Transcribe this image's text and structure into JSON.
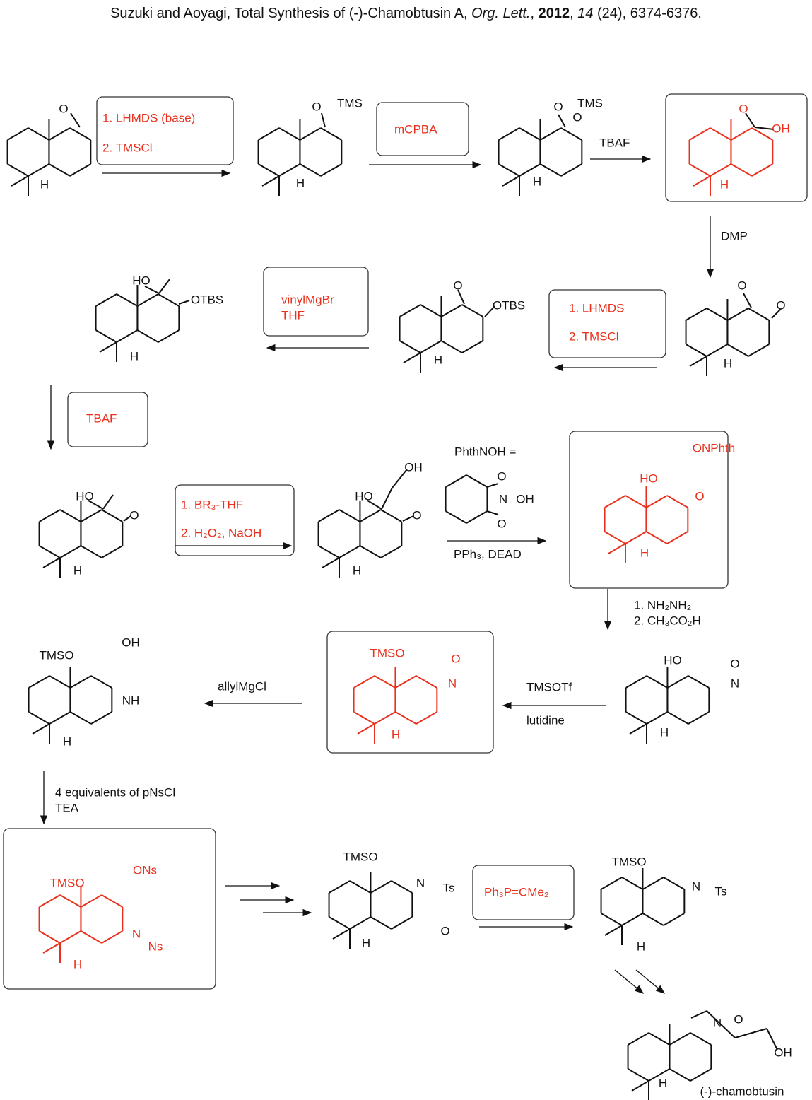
{
  "header": {
    "title_parts": [
      "Suzuki and Aoyagi, Total Synthesis of (-)-Chamobtusin A, ",
      "Org. Lett.",
      ", ",
      "2012",
      ", ",
      "14",
      " (24), 6374-6376."
    ]
  },
  "molecules": [
    {
      "labels": [
        "O",
        "H"
      ]
    },
    {
      "labels": [
        "O",
        "TMS",
        "H"
      ]
    },
    {
      "labels": [
        "O",
        "TMS",
        "O",
        "H"
      ]
    },
    {
      "labels": [
        "O",
        "OH",
        "H"
      ]
    },
    {
      "labels": [
        "O",
        "O",
        "H"
      ]
    },
    {
      "labels": [
        "O",
        "OTBS",
        "H"
      ]
    },
    {
      "labels": [
        "HO",
        "OTBS",
        "H"
      ]
    },
    {
      "labels": [
        "HO",
        "O",
        "H"
      ]
    },
    {
      "labels": [
        "OH",
        "HO",
        "O",
        "H"
      ]
    },
    {
      "labels": [
        "ONPhth",
        "HO",
        "O",
        "H"
      ]
    },
    {
      "labels": [
        "HO",
        "O",
        "N",
        "H"
      ]
    },
    {
      "labels": [
        "TMSO",
        "O",
        "N",
        "H"
      ]
    },
    {
      "labels": [
        "TMSO",
        "OH",
        "NH",
        "H"
      ]
    },
    {
      "labels": [
        "ONs",
        "TMSO",
        "N",
        "Ns",
        "H"
      ]
    },
    {
      "labels": [
        "TMSO",
        "N",
        "Ts",
        "O",
        "H"
      ]
    },
    {
      "labels": [
        "TMSO",
        "N",
        "Ts",
        "H"
      ]
    },
    {
      "labels": [
        "N",
        "O",
        "OH",
        "H",
        "(-)-chamobtusin"
      ]
    }
  ],
  "reagents": [
    [
      "1.  LHMDS (base)",
      "2.  TMSCl"
    ],
    [
      "mCPBA"
    ],
    [
      "TBAF"
    ],
    [
      "DMP"
    ],
    [
      "1.  LHMDS",
      "2.  TMSCl"
    ],
    [
      "vinylMgBr",
      "THF"
    ],
    [
      "TBAF"
    ],
    [
      "1.  BR₃-THF",
      "2.  H₂O₂, NaOH"
    ],
    [
      "PhthNOH =",
      "O",
      "N",
      "OH",
      "O",
      "PPh₃, DEAD"
    ],
    [
      "1.  NH₂NH₂",
      "2.  CH₃CO₂H"
    ],
    [
      "TMSOTf",
      "lutidine"
    ],
    [
      "allylMgCl"
    ],
    [
      "4 equivalents of pNsCl",
      "TEA"
    ],
    [
      "Ph₃P=CMe₂"
    ]
  ]
}
